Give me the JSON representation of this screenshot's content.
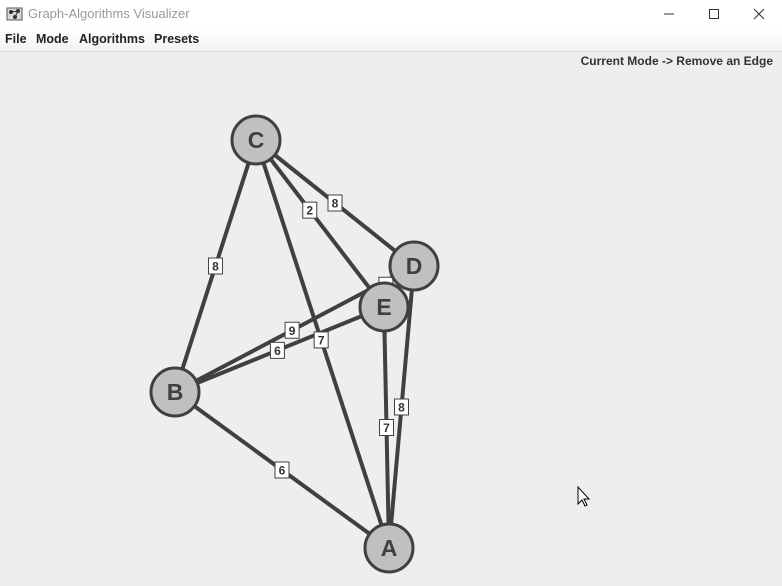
{
  "window": {
    "title": "Graph-Algorithms Visualizer",
    "controls": {
      "minimize": "—",
      "maximize": "☐",
      "close": "✕"
    }
  },
  "menubar": {
    "items": [
      "File",
      "Mode",
      "Algorithms",
      "Presets"
    ]
  },
  "status": {
    "mode_text": "Current Mode -> Remove an Edge"
  },
  "graph": {
    "nodes": [
      {
        "id": "A",
        "label": "A"
      },
      {
        "id": "B",
        "label": "B"
      },
      {
        "id": "C",
        "label": "C"
      },
      {
        "id": "D",
        "label": "D"
      },
      {
        "id": "E",
        "label": "E"
      }
    ],
    "edges": [
      {
        "from": "C",
        "to": "B",
        "weight": "8"
      },
      {
        "from": "C",
        "to": "D",
        "weight": "8"
      },
      {
        "from": "C",
        "to": "E",
        "weight": "2"
      },
      {
        "from": "C",
        "to": "A",
        "weight": "7"
      },
      {
        "from": "B",
        "to": "D",
        "weight": "9"
      },
      {
        "from": "B",
        "to": "E",
        "weight": "6"
      },
      {
        "from": "B",
        "to": "A",
        "weight": "6"
      },
      {
        "from": "D",
        "to": "E",
        "weight": "3"
      },
      {
        "from": "D",
        "to": "A",
        "weight": "8"
      },
      {
        "from": "E",
        "to": "A",
        "weight": "7"
      }
    ]
  },
  "colors": {
    "node_fill": "#c0c0c0",
    "edge": "#404040",
    "background": "#eeeeee"
  }
}
